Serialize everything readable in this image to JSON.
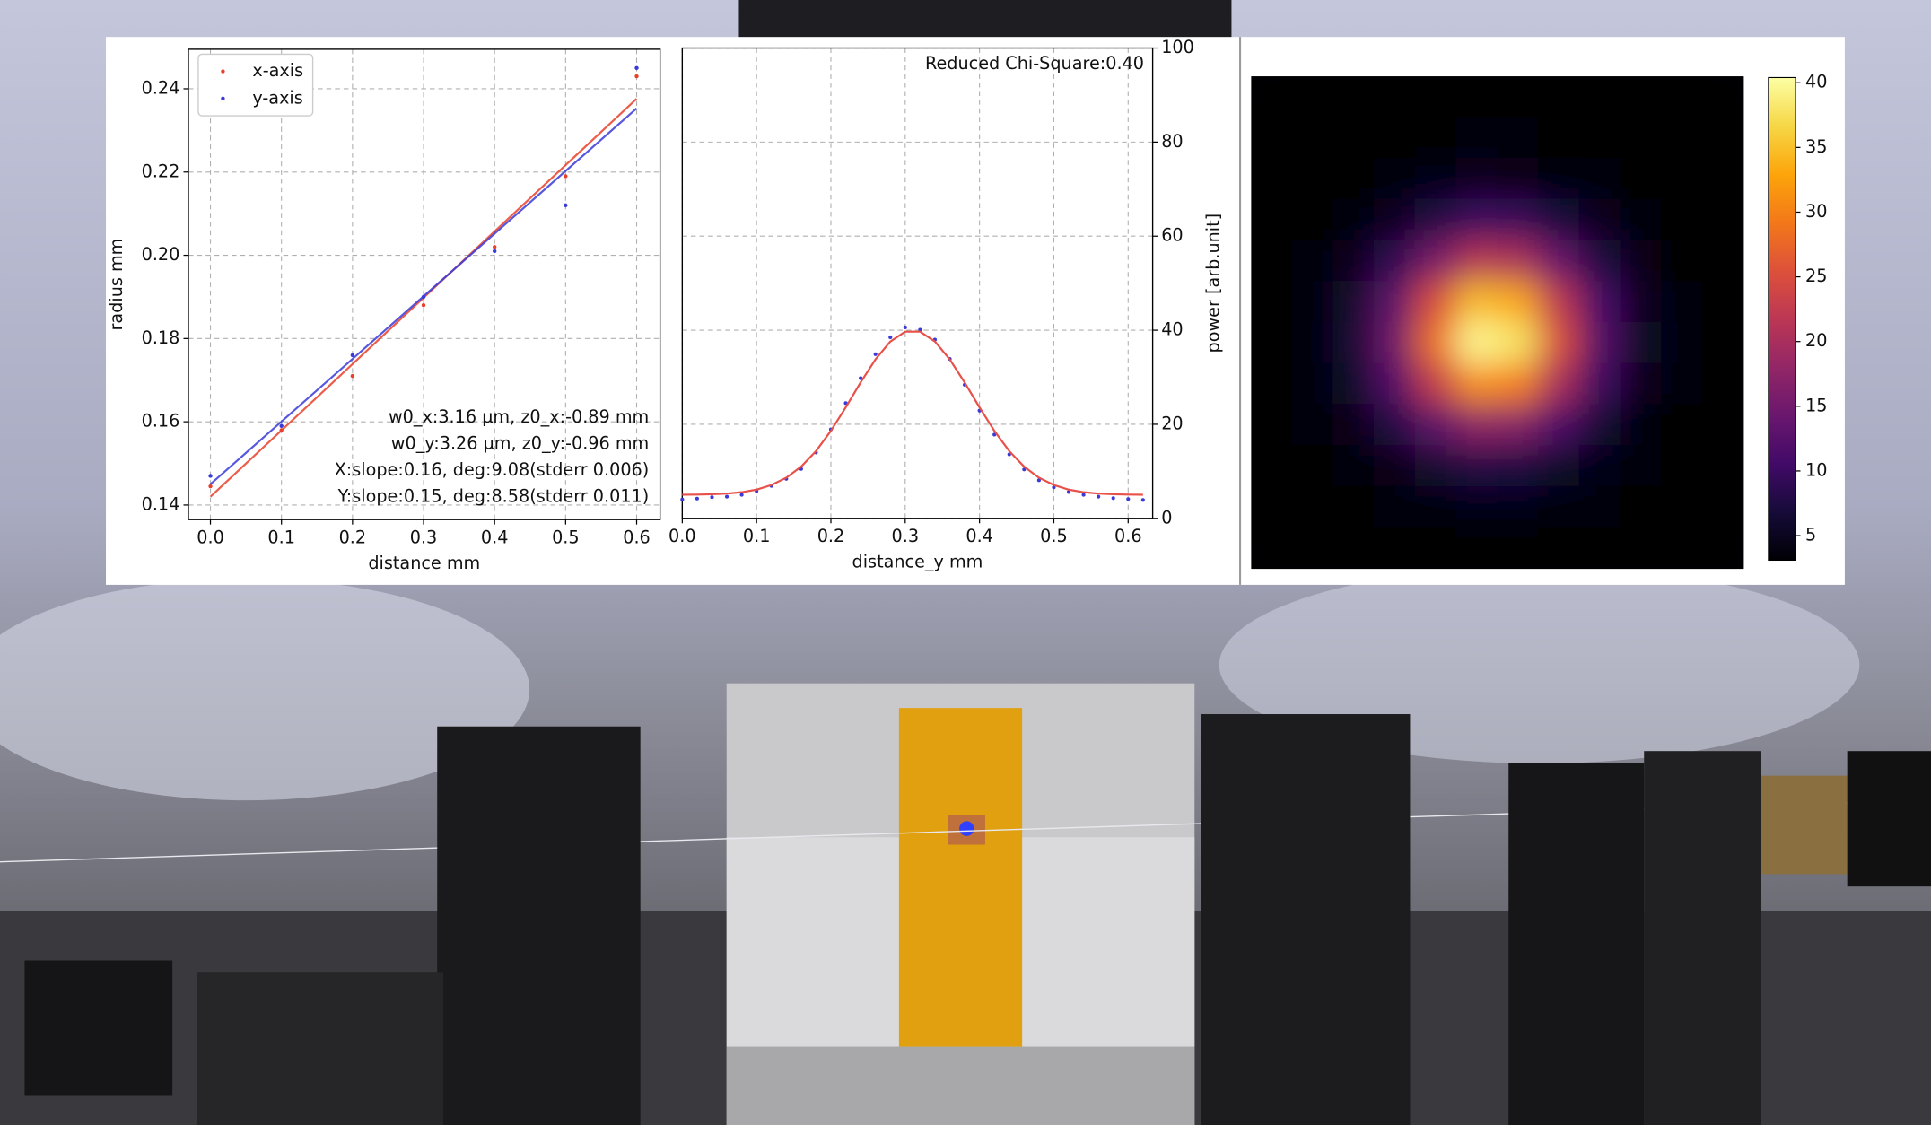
{
  "chart_data": [
    {
      "type": "scatter",
      "x": [
        0,
        0.1,
        0.2,
        0.3,
        0.4,
        0.5,
        0.6
      ],
      "series": [
        {
          "name": "x-axis",
          "color": "#e8402a",
          "values": [
            0.1445,
            0.158,
            0.171,
            0.188,
            0.202,
            0.219,
            0.243
          ],
          "fit": [
            0.142,
            0.2376
          ]
        },
        {
          "name": "y-axis",
          "color": "#3a3ad8",
          "values": [
            0.147,
            0.159,
            0.176,
            0.19,
            0.201,
            0.212,
            0.245
          ],
          "fit": [
            0.145,
            0.2353
          ]
        }
      ],
      "fit_x": [
        0,
        0.6
      ],
      "xlabel": "distance mm",
      "ylabel": "radius mm",
      "xlim": [
        -0.031,
        0.633
      ],
      "ylim": [
        0.1365,
        0.2495
      ],
      "xticks": [
        {
          "value": 0,
          "label": "0.0"
        },
        0.1,
        0.2,
        0.3,
        0.4,
        0.5,
        0.6
      ],
      "yticks": [
        0.14,
        0.16,
        0.18,
        {
          "value": 0.2,
          "label": "0.20"
        },
        0.22,
        0.24
      ],
      "grid": true,
      "legend": "upper left",
      "annotations": [
        "w0_x:3.16 µm, z0_x:-0.89 mm",
        "w0_y:3.26 µm, z0_y:-0.96 mm",
        "X:slope:0.16, deg:9.08(stderr 0.006)",
        "Y:slope:0.15, deg:8.58(stderr 0.011)"
      ]
    },
    {
      "type": "line",
      "title": "Reduced Chi-Square:0.40",
      "x": [
        0,
        0.02,
        0.04,
        0.06,
        0.08,
        0.1,
        0.12,
        0.14,
        0.16,
        0.18,
        0.2,
        0.22,
        0.24,
        0.26,
        0.28,
        0.3,
        0.32,
        0.34,
        0.36,
        0.38,
        0.4,
        0.42,
        0.44,
        0.46,
        0.48,
        0.5,
        0.52,
        0.54,
        0.56,
        0.58,
        0.6,
        0.62
      ],
      "series": [
        {
          "color": "#3a3ad8",
          "style": "markers",
          "values": [
            4.0,
            4.2,
            4.5,
            4.6,
            5.0,
            5.8,
            6.9,
            8.4,
            10.5,
            14.0,
            18.9,
            24.5,
            29.8,
            34.9,
            38.5,
            40.6,
            40.1,
            38.0,
            33.9,
            28.4,
            22.9,
            17.8,
            13.6,
            10.4,
            8.1,
            6.6,
            5.6,
            5.0,
            4.6,
            4.3,
            4.1,
            3.9
          ]
        },
        {
          "color": "#e8504a",
          "style": "line",
          "values": [
            5.02,
            5.05,
            5.12,
            5.27,
            5.56,
            6.11,
            7.09,
            8.65,
            11.0,
            14.3,
            18.6,
            23.6,
            28.9,
            33.8,
            37.6,
            39.7,
            39.7,
            37.6,
            33.8,
            28.9,
            23.6,
            18.6,
            14.3,
            11.0,
            8.65,
            7.09,
            6.11,
            5.56,
            5.27,
            5.12,
            5.05,
            5.02
          ]
        }
      ],
      "xlabel": "distance_y mm",
      "ylabel": "power [arb.unit]",
      "yaxis": "right",
      "xlim": [
        0,
        0.633
      ],
      "ylim": [
        0,
        100
      ],
      "xticks": [
        {
          "value": 0,
          "label": "0.0"
        },
        0.1,
        0.2,
        0.3,
        0.4,
        0.5,
        0.6
      ],
      "yticks": [
        0,
        20,
        40,
        60,
        80,
        100
      ],
      "grid": true
    },
    {
      "type": "heatmap",
      "values": [
        [
          3.0,
          3.0,
          3.0,
          3.0,
          3.0,
          3.0,
          3.0,
          3.0,
          3.0,
          3.0,
          3.0,
          3.0
        ],
        [
          3.0,
          3.0,
          3.0,
          3.1,
          3.2,
          3.3,
          3.3,
          3.2,
          3.1,
          3.0,
          3.0,
          3.0
        ],
        [
          3.0,
          3.0,
          3.2,
          3.6,
          4.2,
          4.7,
          4.6,
          4.0,
          3.4,
          3.1,
          3.0,
          3.0
        ],
        [
          3.0,
          3.1,
          3.7,
          5.2,
          7.8,
          9.9,
          9.6,
          7.1,
          4.7,
          3.5,
          3.1,
          3.0
        ],
        [
          3.0,
          3.4,
          4.8,
          8.8,
          15.6,
          21.1,
          20.2,
          13.9,
          7.6,
          4.3,
          3.2,
          3.0
        ],
        [
          3.1,
          3.6,
          6.1,
          13.2,
          25.0,
          34.6,
          33.1,
          22.0,
          11.0,
          5.2,
          3.4,
          3.0
        ],
        [
          3.1,
          3.7,
          6.6,
          14.8,
          28.6,
          39.7,
          37.9,
          25.1,
          12.3,
          5.5,
          3.5,
          3.1
        ],
        [
          3.1,
          3.6,
          5.8,
          12.1,
          22.7,
          31.2,
          29.9,
          20.0,
          10.1,
          5.0,
          3.4,
          3.0
        ],
        [
          3.0,
          3.3,
          4.4,
          7.7,
          13.1,
          17.4,
          16.7,
          11.7,
          6.6,
          4.0,
          3.2,
          3.0
        ],
        [
          3.0,
          3.1,
          3.5,
          4.6,
          6.4,
          7.8,
          7.6,
          5.9,
          4.2,
          3.3,
          3.1,
          3.0
        ],
        [
          3.0,
          3.0,
          3.1,
          3.4,
          3.8,
          4.1,
          4.1,
          3.7,
          3.3,
          3.1,
          3.0,
          3.0
        ],
        [
          3.0,
          3.0,
          3.0,
          3.1,
          3.1,
          3.2,
          3.2,
          3.1,
          3.0,
          3.0,
          3.0,
          3.0
        ]
      ],
      "colormap": "inferno",
      "clim": [
        3.1,
        40.4
      ],
      "cticks": [
        5,
        10,
        15,
        20,
        25,
        30,
        35,
        40
      ]
    }
  ]
}
